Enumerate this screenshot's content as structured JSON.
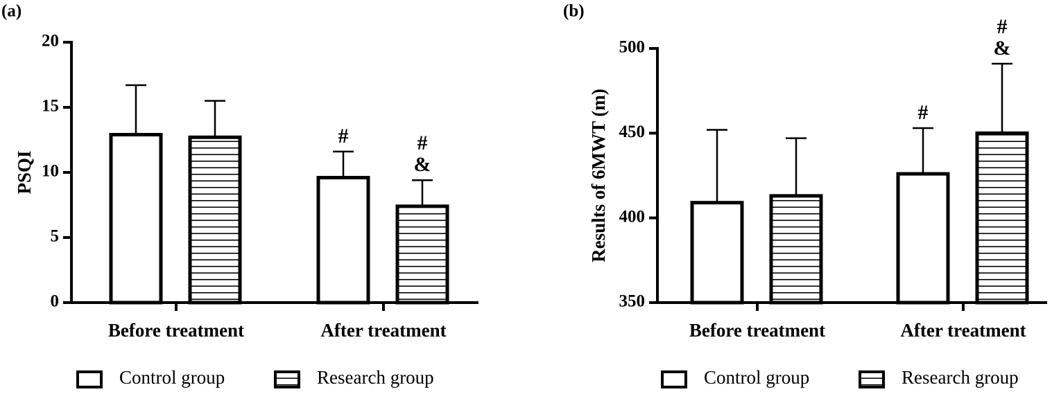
{
  "chart_data": [
    {
      "type": "bar",
      "panel_label": "(a)",
      "y_label": "PSQI",
      "categories": [
        "Before treatment",
        "After treatment"
      ],
      "series": [
        {
          "name": "Control group",
          "color": "#000000",
          "hatch": "none",
          "values": [
            12.9,
            9.6
          ],
          "errors": [
            3.8,
            2.0
          ],
          "annotations": [
            null,
            [
              "#"
            ]
          ]
        },
        {
          "name": "Research group",
          "color": "#000000",
          "hatch": "horizontal",
          "values": [
            12.7,
            7.4
          ],
          "errors": [
            2.8,
            2.0
          ],
          "annotations": [
            null,
            [
              "#",
              "&"
            ]
          ]
        }
      ],
      "ylim": [
        0,
        20
      ],
      "yticks": [
        0,
        5,
        10,
        15,
        20
      ]
    },
    {
      "type": "bar",
      "panel_label": "(b)",
      "y_label": "Results of 6MWT (m)",
      "categories": [
        "Before treatment",
        "After treatment"
      ],
      "series": [
        {
          "name": "Control group",
          "color": "#000000",
          "hatch": "none",
          "values": [
            409,
            426
          ],
          "errors": [
            43,
            27
          ],
          "annotations": [
            null,
            [
              "#"
            ]
          ]
        },
        {
          "name": "Research group",
          "color": "#000000",
          "hatch": "horizontal",
          "values": [
            413,
            450
          ],
          "errors": [
            34,
            41
          ],
          "annotations": [
            null,
            [
              "#",
              "&"
            ]
          ]
        }
      ],
      "ylim": [
        350,
        500
      ],
      "yticks": [
        350,
        400,
        450,
        500
      ]
    }
  ]
}
